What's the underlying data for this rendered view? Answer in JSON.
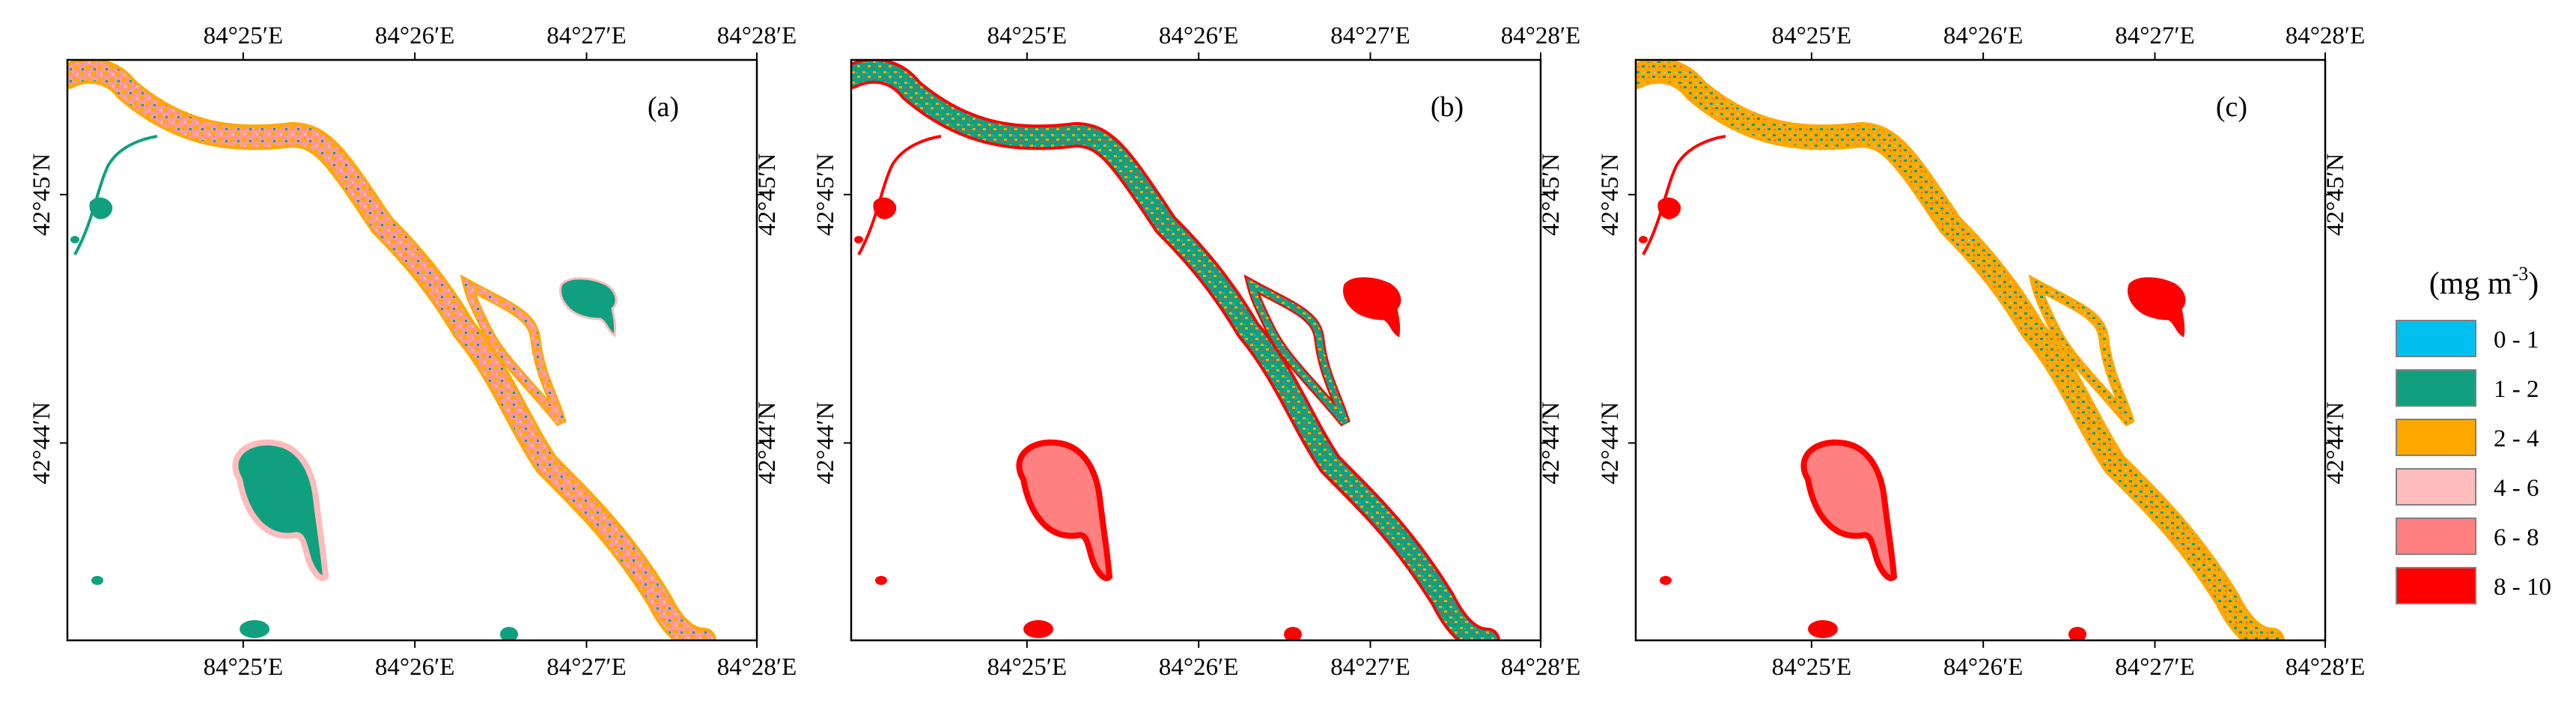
{
  "panels": [
    {
      "id": "a",
      "label": "(a)",
      "scheme": "a"
    },
    {
      "id": "b",
      "label": "(b)",
      "scheme": "b"
    },
    {
      "id": "c",
      "label": "(c)",
      "scheme": "c"
    }
  ],
  "axes": {
    "x_ticks": [
      "84°25′E",
      "84°26′E",
      "84°27′E",
      "84°28′E"
    ],
    "y_ticks": [
      "42°45′N",
      "42°44′N"
    ]
  },
  "legend": {
    "title_main": "(mg m",
    "title_exp": "-3",
    "title_close": ")",
    "classes": [
      {
        "label": "0 - 1",
        "color": "#00c0f0"
      },
      {
        "label": "1 - 2",
        "color": "#10a080"
      },
      {
        "label": "2 - 4",
        "color": "#ffa800"
      },
      {
        "label": "4 - 6",
        "color": "#ffbcbc"
      },
      {
        "label": "6 - 8",
        "color": "#ff8080"
      },
      {
        "label": "8 - 10",
        "color": "#ff0000"
      }
    ]
  },
  "colors": {
    "teal": "#10a080",
    "orange": "#ffa800",
    "pink": "#ff9090",
    "light_pink": "#ffbcbc",
    "salmon": "#ff8080",
    "red": "#ff0000",
    "frame": "#000000"
  }
}
